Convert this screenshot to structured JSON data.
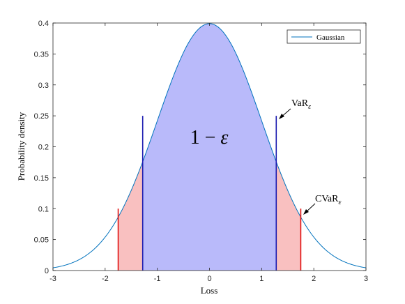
{
  "chart_data": {
    "type": "area",
    "title": "",
    "xlabel": "Loss",
    "ylabel": "Probability density",
    "xlim": [
      -3,
      3
    ],
    "ylim": [
      0,
      0.4
    ],
    "xticks": [
      "-3",
      "-2",
      "-1",
      "0",
      "1",
      "2",
      "3"
    ],
    "yticks": [
      "0",
      "0.05",
      "0.1",
      "0.15",
      "0.2",
      "0.25",
      "0.3",
      "0.35",
      "0.4"
    ],
    "grid": false,
    "legend": {
      "position": "top-right",
      "entries": [
        "Gaussian"
      ]
    },
    "series": [
      {
        "name": "Gaussian",
        "distribution": "standard normal",
        "mean": 0,
        "std": 1,
        "color": "#0072BD"
      }
    ],
    "regions": [
      {
        "from": -1.28,
        "to": 1.28,
        "color": "#B9BAFA",
        "label": "1 − ε"
      },
      {
        "from": -1.75,
        "to": -1.28,
        "color": "#F9C0C0"
      },
      {
        "from": 1.28,
        "to": 1.75,
        "color": "#F9C0C0"
      }
    ],
    "vlines": [
      {
        "x": -1.28,
        "ymax": 0.25,
        "color": "#1A1AB0"
      },
      {
        "x": 1.28,
        "ymax": 0.25,
        "color": "#1A1AB0"
      },
      {
        "x": -1.75,
        "ymax": 0.1,
        "color": "#E01010"
      },
      {
        "x": 1.75,
        "ymax": 0.1,
        "color": "#E01010"
      }
    ],
    "annotations": {
      "center": {
        "base": "1 − ",
        "sym": "ε"
      },
      "var": {
        "base": "VaR",
        "sub": "ε"
      },
      "cvar": {
        "base": "CVaR",
        "sub": "ε"
      }
    }
  }
}
